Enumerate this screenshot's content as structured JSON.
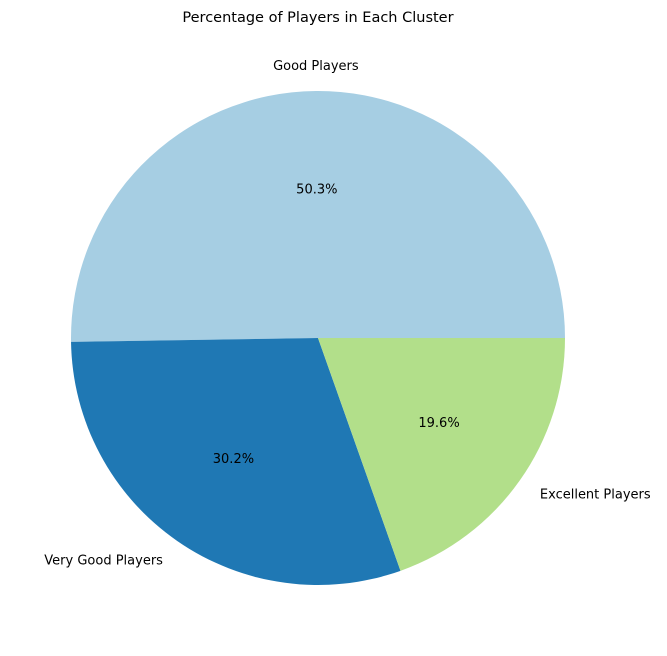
{
  "chart_data": {
    "type": "pie",
    "title": "Percentage of Players in Each Cluster",
    "slices": [
      {
        "label": "Good Players",
        "value": 50.3,
        "pct_label": "50.3%",
        "color": "#a6cee3"
      },
      {
        "label": "Very Good Players",
        "value": 30.2,
        "pct_label": "30.2%",
        "color": "#1f78b4"
      },
      {
        "label": "Excellent Players",
        "value": 19.6,
        "pct_label": "19.6%",
        "color": "#b2df8a"
      }
    ],
    "start_angle_deg": 0,
    "direction": "counterclockwise",
    "legend": "none"
  }
}
